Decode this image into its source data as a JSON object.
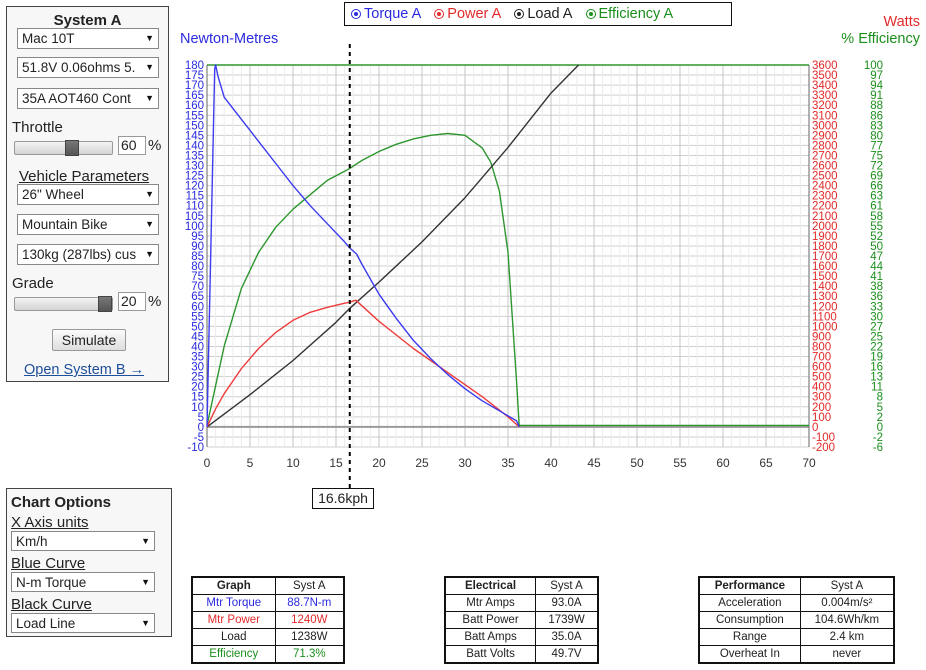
{
  "system_panel": {
    "title": "System A",
    "motor": "Mac 10T",
    "battery": "51.8V 0.06ohms 5.",
    "controller": "35A AOT460 Cont",
    "throttle_label": "Throttle",
    "throttle_value": "60",
    "throttle_fraction": 0.6,
    "percent_sign": "%",
    "vehicle_label": "Vehicle Parameters",
    "wheel": "26\"  Wheel",
    "bike_type": "Mountain Bike",
    "weight": "130kg (287lbs) cus",
    "grade_label": "Grade",
    "grade_value": "20",
    "grade_fraction": 1.0,
    "simulate_button": "Simulate",
    "open_system_b": "Open System B →"
  },
  "chart_options": {
    "title": "Chart Options",
    "x_axis_label": "X Axis units",
    "x_axis_value": "Km/h",
    "blue_curve_label": "Blue Curve",
    "blue_curve_value": "N-m Torque",
    "black_curve_label": "Black Curve",
    "black_curve_value": "Load Line"
  },
  "legend": {
    "torque": "Torque A",
    "power": "Power A",
    "load": "Load A",
    "efficiency": "Efficiency A"
  },
  "cursor": {
    "value": 16.6,
    "label": "16.6kph"
  },
  "chart_data": {
    "type": "line",
    "ylabel_left": "Newton-Metres",
    "ylabel_right_power": "Watts",
    "ylabel_right_eff": "% Efficiency",
    "xlim": [
      0,
      70
    ],
    "x_ticks": [
      0,
      5,
      10,
      15,
      20,
      25,
      30,
      35,
      40,
      45,
      50,
      55,
      60,
      65,
      70
    ],
    "ylim_torque": [
      -10,
      180
    ],
    "ylim_power": [
      -200,
      3600
    ],
    "ylim_eff": [
      -6,
      100
    ],
    "eff_ticks": [
      100,
      97,
      94,
      91,
      88,
      86,
      83,
      80,
      77,
      75,
      72,
      69,
      66,
      63,
      61,
      58,
      55,
      52,
      50,
      47,
      44,
      41,
      38,
      36,
      33,
      30,
      27,
      25,
      22,
      19,
      16,
      13,
      11,
      8,
      5,
      2,
      0,
      -2,
      -6
    ],
    "grid": true,
    "colors": {
      "torque": "#3b3bf0",
      "power": "#ee3b3b",
      "load": "#333333",
      "efficiency": "#2e962e",
      "grid": "#cfcfcf"
    },
    "series": [
      {
        "name": "Torque A",
        "axis": "torque",
        "x": [
          0,
          0.9,
          1.0,
          1.3,
          2,
          4,
          6,
          8,
          10,
          12,
          14,
          16,
          16.6,
          17.4,
          18,
          20,
          22,
          24,
          26,
          28,
          30,
          32,
          34,
          36,
          36.3
        ],
        "y": [
          0,
          178,
          180,
          174,
          164,
          153,
          142,
          131,
          120,
          110,
          101,
          92,
          89,
          86,
          81,
          66,
          54,
          43,
          34,
          26,
          19,
          13,
          8,
          3,
          0
        ]
      },
      {
        "name": "Power A",
        "axis": "power",
        "x": [
          0,
          1,
          2,
          4,
          6,
          8,
          10,
          12,
          14,
          16,
          16.6,
          17.3,
          20,
          24,
          28,
          32,
          35,
          36.3
        ],
        "y": [
          0,
          180,
          330,
          580,
          780,
          940,
          1060,
          1140,
          1190,
          1230,
          1240,
          1260,
          1050,
          780,
          540,
          300,
          100,
          0
        ]
      },
      {
        "name": "Load A",
        "axis": "torque",
        "x": [
          0,
          5,
          10,
          15,
          16.6,
          20,
          25,
          30,
          35,
          40,
          43.2
        ],
        "y": [
          0,
          16,
          33,
          52,
          59,
          72,
          92,
          114,
          139,
          166,
          180
        ]
      },
      {
        "name": "Efficiency A",
        "axis": "eff",
        "x": [
          0,
          2,
          4,
          6,
          8,
          10,
          12,
          14,
          16,
          16.6,
          18,
          20,
          22,
          24,
          26,
          28,
          30,
          32,
          33,
          34,
          35,
          35.5,
          36,
          36.3,
          70
        ],
        "y": [
          0,
          22,
          38,
          48,
          55,
          60,
          64,
          68,
          70.5,
          71.3,
          73.5,
          76,
          78,
          79.5,
          80.5,
          81,
          80.5,
          77,
          73,
          65,
          48,
          30,
          12,
          0,
          0
        ]
      }
    ]
  },
  "graph_table": {
    "headers": [
      "Graph",
      "Syst A"
    ],
    "rows": [
      [
        "Mtr Torque",
        "88.7N-m"
      ],
      [
        "Mtr Power",
        "1240W"
      ],
      [
        "Load",
        "1238W"
      ],
      [
        "Efficiency",
        "71.3%"
      ]
    ]
  },
  "electrical_table": {
    "headers": [
      "Electrical",
      "Syst A"
    ],
    "rows": [
      [
        "Mtr Amps",
        "93.0A"
      ],
      [
        "Batt Power",
        "1739W"
      ],
      [
        "Batt Amps",
        "35.0A"
      ],
      [
        "Batt Volts",
        "49.7V"
      ]
    ]
  },
  "performance_table": {
    "headers": [
      "Performance",
      "Syst A"
    ],
    "rows": [
      [
        "Acceleration",
        "0.004m/s²"
      ],
      [
        "Consumption",
        "104.6Wh/km"
      ],
      [
        "Range",
        "2.4 km"
      ],
      [
        "Overheat In",
        "never"
      ]
    ]
  }
}
